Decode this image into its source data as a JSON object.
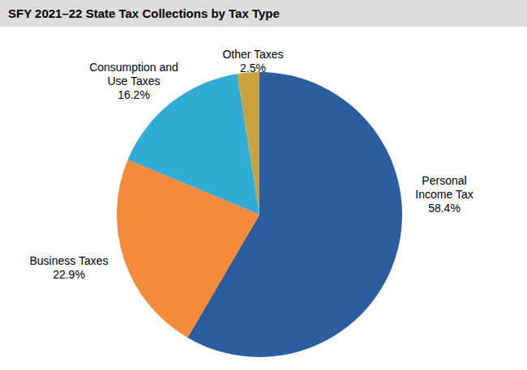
{
  "chart_data": {
    "type": "pie",
    "title": "SFY 2021–22 State Tax Collections by Tax Type",
    "categories": [
      "Personal Income Tax",
      "Business Taxes",
      "Consumption and Use Taxes",
      "Other Taxes"
    ],
    "values": [
      58.4,
      22.9,
      16.2,
      2.5
    ],
    "colors": [
      "#2b5d9f",
      "#f28c3c",
      "#31acd4",
      "#c9a23e"
    ],
    "data_labels": true,
    "value_labels": [
      "58.4%",
      "22.9%",
      "16.2%",
      "2.5%"
    ]
  }
}
